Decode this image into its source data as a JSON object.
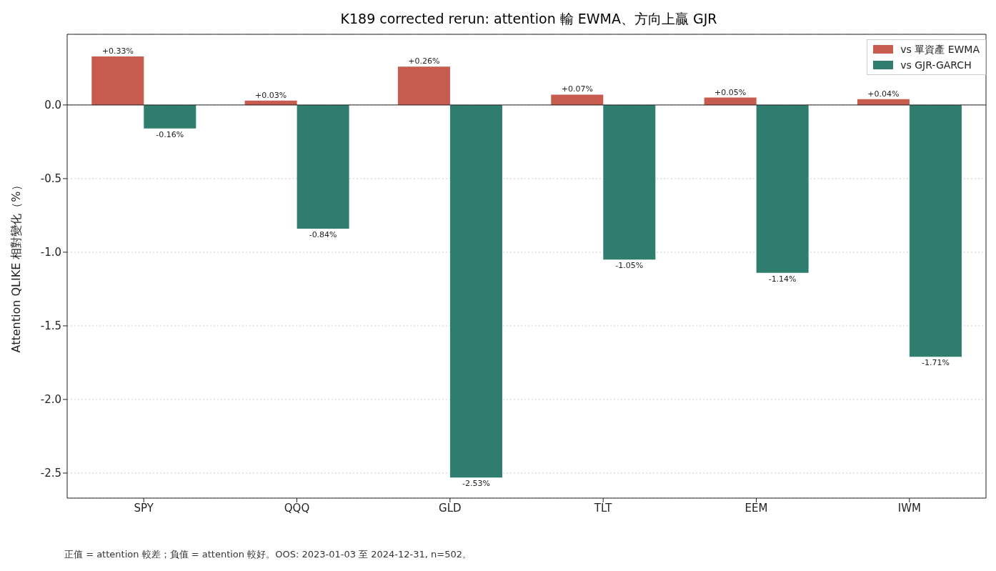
{
  "chart_data": {
    "type": "bar",
    "title": "K189 corrected rerun: attention 輸 EWMA、方向上贏 GJR",
    "ylabel": "Attention QLIKE 相對變化（%）",
    "annotations": [
      "正值 = attention 較差；負值 = attention 較好。OOS: 2023-01-03 至 2024-12-31, n=502。"
    ],
    "categories": [
      "SPY",
      "QQQ",
      "GLD",
      "TLT",
      "EEM",
      "IWM"
    ],
    "series": [
      {
        "name": "vs 單資產 EWMA",
        "color": "#c65b4e",
        "values": [
          0.33,
          0.03,
          0.26,
          0.07,
          0.05,
          0.04
        ],
        "value_labels": [
          "+0.33%",
          "+0.03%",
          "+0.26%",
          "+0.07%",
          "+0.05%",
          "+0.04%"
        ]
      },
      {
        "name": "vs GJR-GARCH",
        "color": "#2e7d6e",
        "values": [
          -0.16,
          -0.84,
          -2.53,
          -1.05,
          -1.14,
          -1.71
        ],
        "value_labels": [
          "-0.16%",
          "-0.84%",
          "-2.53%",
          "-1.05%",
          "-1.14%",
          "-1.71%"
        ]
      }
    ],
    "ylim": [
      -2.67,
      0.48
    ],
    "yticks": [
      {
        "value": 0,
        "label": "0.0"
      },
      -0.5,
      {
        "value": -1,
        "label": "-1.0"
      },
      -1.5,
      {
        "value": -2,
        "label": "-2.0"
      },
      -2.5
    ],
    "ref_lines": [
      {
        "axis": "y",
        "value": 0,
        "color": "#222222"
      }
    ],
    "grid": "y",
    "legend": "top right"
  }
}
